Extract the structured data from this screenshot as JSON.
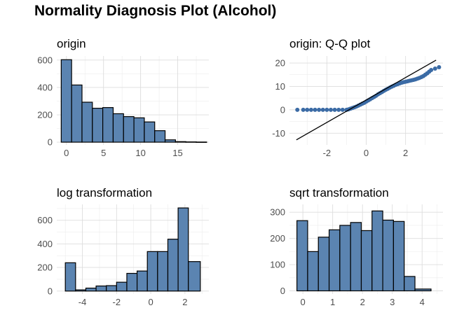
{
  "title": "Normality Diagnosis Plot (Alcohol)",
  "colors": {
    "bar_fill": "#5b84b1",
    "bar_stroke": "#000000",
    "point": "#3b6ba5",
    "line": "#000000",
    "grid": "#dddddd"
  },
  "chart_data": [
    {
      "type": "bar",
      "title": "origin",
      "xlim": [
        -1.3,
        19.2
      ],
      "ylim": [
        -20,
        630
      ],
      "x_ticks": [
        0,
        5,
        10,
        15
      ],
      "y_ticks": [
        0,
        200,
        400,
        600
      ],
      "bins": [
        {
          "start": -0.7,
          "end": 0.7,
          "value": 603
        },
        {
          "start": 0.7,
          "end": 2.1,
          "value": 418
        },
        {
          "start": 2.1,
          "end": 3.5,
          "value": 292
        },
        {
          "start": 3.5,
          "end": 4.9,
          "value": 248
        },
        {
          "start": 4.9,
          "end": 6.3,
          "value": 253
        },
        {
          "start": 6.3,
          "end": 7.7,
          "value": 208
        },
        {
          "start": 7.7,
          "end": 9.1,
          "value": 187
        },
        {
          "start": 9.1,
          "end": 10.5,
          "value": 178
        },
        {
          "start": 10.5,
          "end": 11.9,
          "value": 148
        },
        {
          "start": 11.9,
          "end": 13.3,
          "value": 84
        },
        {
          "start": 13.3,
          "end": 14.7,
          "value": 17
        },
        {
          "start": 14.7,
          "end": 16.1,
          "value": 4
        },
        {
          "start": 16.1,
          "end": 17.5,
          "value": 2
        },
        {
          "start": 17.5,
          "end": 18.9,
          "value": 1
        }
      ]
    },
    {
      "type": "scatter",
      "title": "origin: Q-Q plot",
      "xlim": [
        -3.9,
        3.9
      ],
      "ylim": [
        -15,
        23
      ],
      "x_ticks": [
        -2,
        0,
        2
      ],
      "y_ticks": [
        -10,
        0,
        10,
        20
      ],
      "reference_line": {
        "intercept": 4.2,
        "slope": 4.8,
        "x_range": [
          -3.55,
          3.55
        ]
      },
      "points": [
        [
          -3.5,
          0
        ],
        [
          -3.2,
          0
        ],
        [
          -3.0,
          0
        ],
        [
          -2.8,
          0
        ],
        [
          -2.6,
          0
        ],
        [
          -2.4,
          0
        ],
        [
          -2.2,
          0
        ],
        [
          -2.0,
          0
        ],
        [
          -1.8,
          0
        ],
        [
          -1.6,
          0
        ],
        [
          -1.4,
          0
        ],
        [
          -1.2,
          0
        ],
        [
          -1.0,
          0
        ],
        [
          -0.9,
          0.2
        ],
        [
          -0.8,
          0.5
        ],
        [
          -0.7,
          0.8
        ],
        [
          -0.6,
          1.1
        ],
        [
          -0.5,
          1.4
        ],
        [
          -0.4,
          1.8
        ],
        [
          -0.3,
          2.2
        ],
        [
          -0.2,
          2.6
        ],
        [
          -0.1,
          3.0
        ],
        [
          0.0,
          3.5
        ],
        [
          0.1,
          4.0
        ],
        [
          0.2,
          4.5
        ],
        [
          0.3,
          5.0
        ],
        [
          0.4,
          5.5
        ],
        [
          0.5,
          6.0
        ],
        [
          0.6,
          6.6
        ],
        [
          0.7,
          7.1
        ],
        [
          0.8,
          7.6
        ],
        [
          0.9,
          8.1
        ],
        [
          1.0,
          8.6
        ],
        [
          1.1,
          9.0
        ],
        [
          1.2,
          9.5
        ],
        [
          1.3,
          9.9
        ],
        [
          1.4,
          10.3
        ],
        [
          1.5,
          10.7
        ],
        [
          1.6,
          11.0
        ],
        [
          1.7,
          11.3
        ],
        [
          1.8,
          11.6
        ],
        [
          1.9,
          11.8
        ],
        [
          2.0,
          12.0
        ],
        [
          2.1,
          12.2
        ],
        [
          2.2,
          12.4
        ],
        [
          2.3,
          12.6
        ],
        [
          2.4,
          12.8
        ],
        [
          2.5,
          13.0
        ],
        [
          2.6,
          13.3
        ],
        [
          2.7,
          13.6
        ],
        [
          2.8,
          14.0
        ],
        [
          2.9,
          14.4
        ],
        [
          3.0,
          15.0
        ],
        [
          3.1,
          15.6
        ],
        [
          3.2,
          16.3
        ],
        [
          3.3,
          17.0
        ],
        [
          3.5,
          17.6
        ],
        [
          3.7,
          18.2
        ]
      ]
    },
    {
      "type": "bar",
      "title": "log transformation",
      "xlim": [
        -5.5,
        3.4
      ],
      "ylim": [
        -25,
        735
      ],
      "x_ticks": [
        -4,
        -2,
        0,
        2
      ],
      "y_ticks": [
        0,
        200,
        400,
        600
      ],
      "bins": [
        {
          "start": -5.0,
          "end": -4.4,
          "value": 240
        },
        {
          "start": -4.4,
          "end": -3.8,
          "value": 10
        },
        {
          "start": -3.8,
          "end": -3.2,
          "value": 25
        },
        {
          "start": -3.2,
          "end": -2.6,
          "value": 43
        },
        {
          "start": -2.6,
          "end": -2.0,
          "value": 46
        },
        {
          "start": -2.0,
          "end": -1.4,
          "value": 75
        },
        {
          "start": -1.4,
          "end": -0.8,
          "value": 150
        },
        {
          "start": -0.8,
          "end": -0.2,
          "value": 170
        },
        {
          "start": -0.2,
          "end": 0.4,
          "value": 335
        },
        {
          "start": 0.4,
          "end": 1.0,
          "value": 335
        },
        {
          "start": 1.0,
          "end": 1.6,
          "value": 440
        },
        {
          "start": 1.6,
          "end": 2.2,
          "value": 705
        },
        {
          "start": 2.2,
          "end": 2.9,
          "value": 250
        }
      ]
    },
    {
      "type": "bar",
      "title": "sqrt transformation",
      "xlim": [
        -0.45,
        4.7
      ],
      "ylim": [
        -12,
        330
      ],
      "x_ticks": [
        0,
        1,
        2,
        3,
        4
      ],
      "y_ticks": [
        0,
        100,
        200,
        300
      ],
      "bins": [
        {
          "start": -0.2,
          "end": 0.16,
          "value": 268
        },
        {
          "start": 0.16,
          "end": 0.52,
          "value": 150
        },
        {
          "start": 0.52,
          "end": 0.88,
          "value": 205
        },
        {
          "start": 0.88,
          "end": 1.24,
          "value": 233
        },
        {
          "start": 1.24,
          "end": 1.6,
          "value": 250
        },
        {
          "start": 1.6,
          "end": 1.96,
          "value": 261
        },
        {
          "start": 1.96,
          "end": 2.32,
          "value": 230
        },
        {
          "start": 2.32,
          "end": 2.68,
          "value": 305
        },
        {
          "start": 2.68,
          "end": 3.04,
          "value": 270
        },
        {
          "start": 3.04,
          "end": 3.4,
          "value": 265
        },
        {
          "start": 3.4,
          "end": 3.76,
          "value": 55
        },
        {
          "start": 3.76,
          "end": 4.3,
          "value": 7
        }
      ]
    }
  ]
}
